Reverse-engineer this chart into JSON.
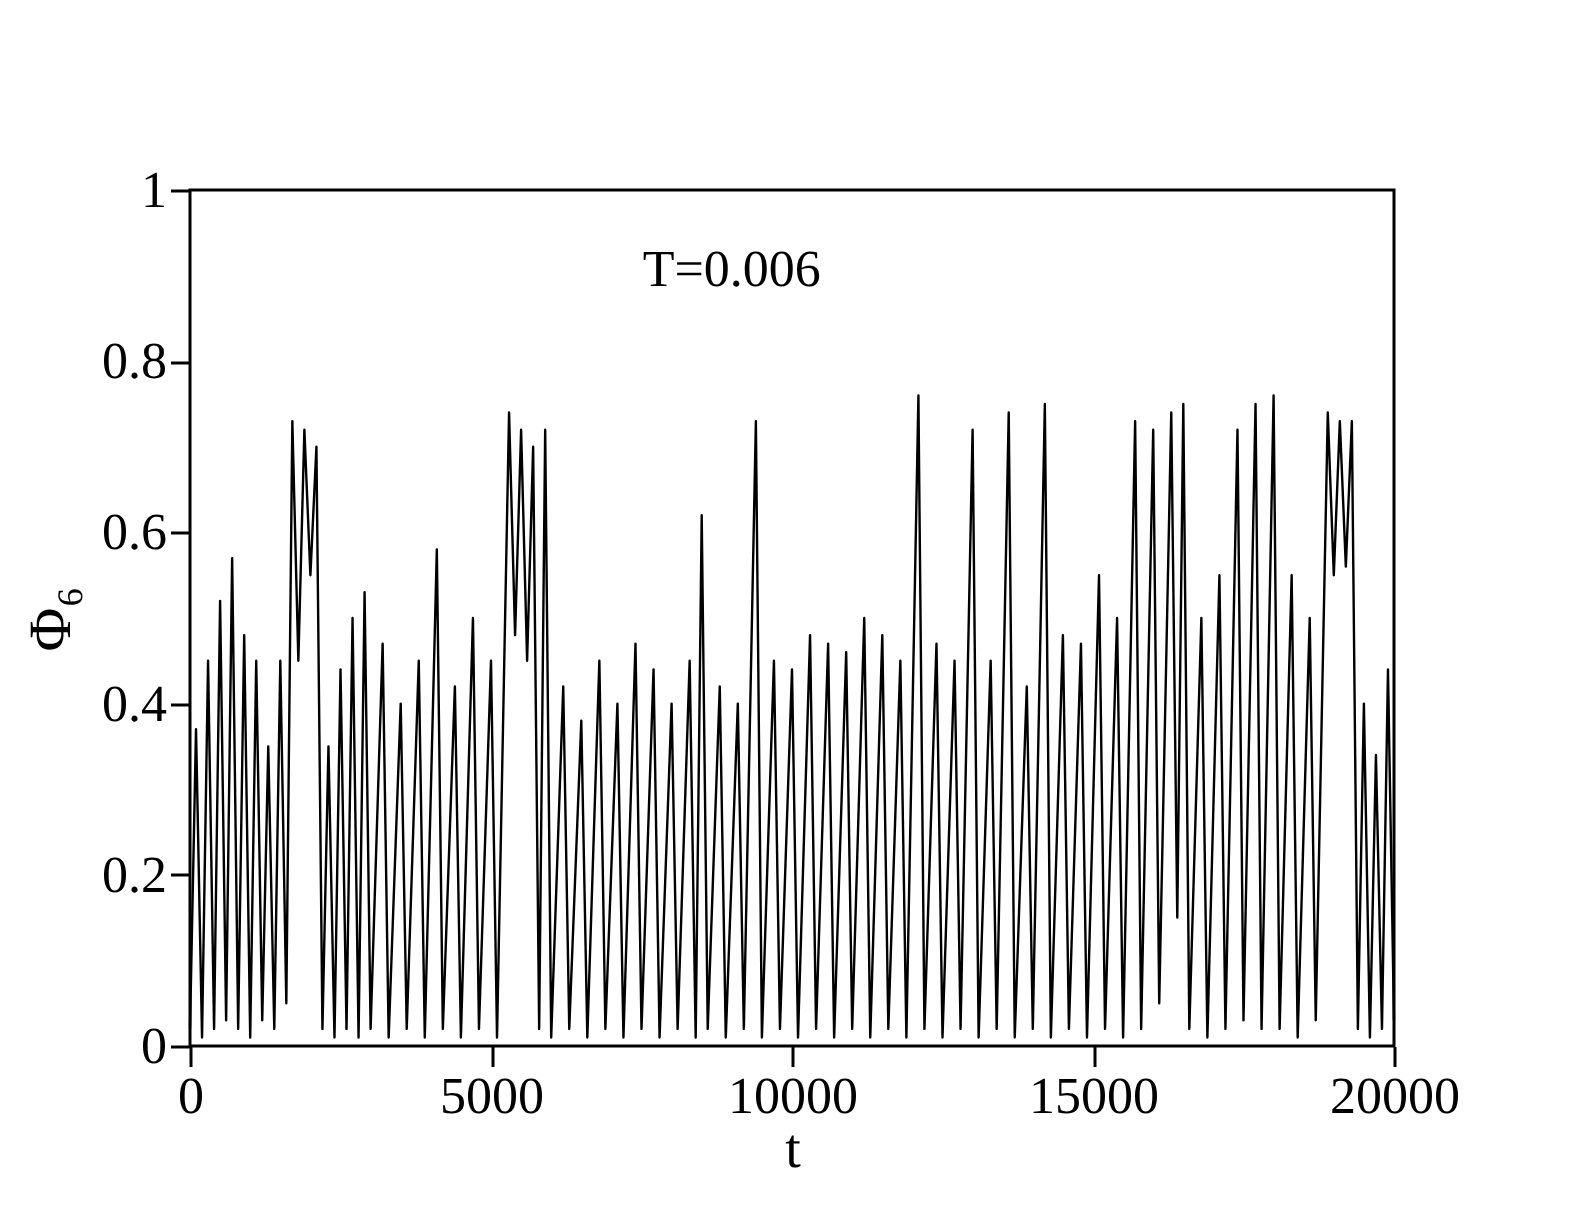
{
  "chart_data": {
    "type": "line",
    "xlabel": "t",
    "ylabel": "Φ₆",
    "annotations": [
      "T=0.006"
    ],
    "x": [
      0,
      100,
      200,
      300,
      400,
      500,
      600,
      700,
      800,
      900,
      1000,
      1100,
      1200,
      1300,
      1400,
      1500,
      1600,
      1700,
      1800,
      1900,
      2000,
      2100,
      2200,
      2300,
      2400,
      2500,
      2600,
      2700,
      2800,
      2900,
      3000,
      3200,
      3300,
      3500,
      3600,
      3800,
      3900,
      4100,
      4200,
      4400,
      4500,
      4700,
      4800,
      5000,
      5100,
      5300,
      5400,
      5500,
      5600,
      5700,
      5800,
      5900,
      6000,
      6200,
      6300,
      6500,
      6600,
      6800,
      6900,
      7100,
      7200,
      7400,
      7500,
      7700,
      7800,
      8000,
      8100,
      8300,
      8400,
      8500,
      8600,
      8800,
      8900,
      9100,
      9200,
      9400,
      9500,
      9700,
      9800,
      10000,
      10100,
      10300,
      10400,
      10600,
      10700,
      10900,
      11000,
      11200,
      11300,
      11500,
      11600,
      11800,
      11900,
      12100,
      12200,
      12400,
      12500,
      12700,
      12800,
      13000,
      13100,
      13300,
      13400,
      13600,
      13700,
      13900,
      14000,
      14200,
      14300,
      14500,
      14600,
      14800,
      14900,
      15100,
      15200,
      15400,
      15500,
      15700,
      15800,
      16000,
      16100,
      16300,
      16400,
      16500,
      16600,
      16800,
      16900,
      17100,
      17200,
      17400,
      17500,
      17700,
      17800,
      18000,
      18100,
      18300,
      18400,
      18600,
      18700,
      18900,
      19000,
      19100,
      19200,
      19300,
      19400,
      19500,
      19600,
      19700,
      19800,
      19900,
      20000
    ],
    "series": [
      {
        "color": "#000000",
        "values": [
          0.02,
          0.37,
          0.01,
          0.45,
          0.02,
          0.52,
          0.03,
          0.57,
          0.02,
          0.48,
          0.01,
          0.45,
          0.03,
          0.35,
          0.02,
          0.45,
          0.05,
          0.73,
          0.45,
          0.72,
          0.55,
          0.7,
          0.02,
          0.35,
          0.01,
          0.44,
          0.02,
          0.5,
          0.01,
          0.53,
          0.02,
          0.47,
          0.01,
          0.4,
          0.02,
          0.45,
          0.01,
          0.58,
          0.02,
          0.42,
          0.01,
          0.5,
          0.02,
          0.45,
          0.01,
          0.74,
          0.48,
          0.72,
          0.45,
          0.7,
          0.02,
          0.72,
          0.01,
          0.42,
          0.02,
          0.38,
          0.01,
          0.45,
          0.02,
          0.4,
          0.01,
          0.47,
          0.02,
          0.44,
          0.01,
          0.4,
          0.02,
          0.45,
          0.01,
          0.62,
          0.02,
          0.42,
          0.01,
          0.4,
          0.02,
          0.73,
          0.01,
          0.45,
          0.02,
          0.44,
          0.01,
          0.48,
          0.02,
          0.47,
          0.01,
          0.46,
          0.02,
          0.5,
          0.01,
          0.48,
          0.02,
          0.45,
          0.01,
          0.76,
          0.02,
          0.47,
          0.01,
          0.45,
          0.02,
          0.72,
          0.01,
          0.45,
          0.02,
          0.74,
          0.01,
          0.42,
          0.02,
          0.75,
          0.01,
          0.48,
          0.02,
          0.47,
          0.01,
          0.55,
          0.02,
          0.5,
          0.01,
          0.73,
          0.02,
          0.72,
          0.05,
          0.74,
          0.15,
          0.75,
          0.02,
          0.5,
          0.01,
          0.55,
          0.02,
          0.72,
          0.03,
          0.75,
          0.02,
          0.76,
          0.02,
          0.55,
          0.01,
          0.5,
          0.03,
          0.74,
          0.55,
          0.73,
          0.56,
          0.73,
          0.02,
          0.4,
          0.01,
          0.34,
          0.02,
          0.44,
          0.03
        ]
      }
    ],
    "xlim": [
      0,
      20000
    ],
    "xticks": [
      0,
      5000,
      10000,
      15000,
      20000
    ],
    "ylim": [
      0,
      1
    ],
    "yticks": [
      0,
      0.2,
      0.4,
      0.6,
      0.8,
      1
    ],
    "grid": false,
    "marker": "none",
    "line_style": "solid"
  }
}
